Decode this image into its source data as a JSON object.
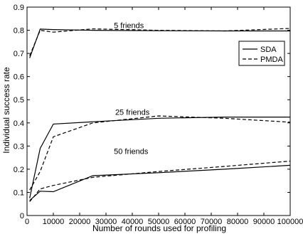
{
  "chart_data": {
    "type": "line",
    "title": "",
    "xlabel": "Number of rounds used for profiling",
    "ylabel": "Individual success rate",
    "xlim": [
      0,
      100000
    ],
    "ylim": [
      0,
      0.9
    ],
    "x_ticks": [
      0,
      10000,
      20000,
      30000,
      40000,
      50000,
      60000,
      70000,
      80000,
      90000,
      100000
    ],
    "y_ticks": [
      0,
      0.1,
      0.2,
      0.3,
      0.4,
      0.5,
      0.6,
      0.7,
      0.8,
      0.9
    ],
    "grid": false,
    "legend": {
      "position": "top-right",
      "entries": [
        {
          "label": "SDA",
          "style": "solid"
        },
        {
          "label": "PMDA",
          "style": "dashed"
        }
      ]
    },
    "annotations": [
      {
        "text": "5 friends",
        "x": 33000,
        "y": 0.81
      },
      {
        "text": "25 friends",
        "x": 33500,
        "y": 0.435
      },
      {
        "text": "50 friends",
        "x": 33000,
        "y": 0.265
      }
    ],
    "series": [
      {
        "group": "5 friends",
        "legend": "SDA",
        "style": "solid",
        "x": [
          1000,
          5000,
          10000,
          25000,
          50000,
          75000,
          100000
        ],
        "y": [
          0.68,
          0.805,
          0.803,
          0.8,
          0.798,
          0.797,
          0.797
        ]
      },
      {
        "group": "5 friends",
        "legend": "PMDA",
        "style": "dashed",
        "x": [
          1000,
          5000,
          10000,
          25000,
          50000,
          75000,
          100000
        ],
        "y": [
          0.69,
          0.8,
          0.792,
          0.806,
          0.8,
          0.797,
          0.808
        ]
      },
      {
        "group": "25 friends",
        "legend": "SDA",
        "style": "solid",
        "x": [
          1000,
          5000,
          10000,
          25000,
          50000,
          75000,
          100000
        ],
        "y": [
          0.075,
          0.29,
          0.395,
          0.405,
          0.42,
          0.425,
          0.425
        ]
      },
      {
        "group": "25 friends",
        "legend": "PMDA",
        "style": "dashed",
        "x": [
          1000,
          5000,
          10000,
          25000,
          50000,
          75000,
          100000
        ],
        "y": [
          0.11,
          0.19,
          0.34,
          0.4,
          0.43,
          0.42,
          0.403
        ]
      },
      {
        "group": "50 friends",
        "legend": "SDA",
        "style": "solid",
        "x": [
          1000,
          5000,
          10000,
          25000,
          50000,
          75000,
          100000
        ],
        "y": [
          0.065,
          0.105,
          0.103,
          0.172,
          0.185,
          0.2,
          0.217
        ]
      },
      {
        "group": "50 friends",
        "legend": "PMDA",
        "style": "dashed",
        "x": [
          1000,
          5000,
          10000,
          25000,
          50000,
          75000,
          100000
        ],
        "y": [
          0.06,
          0.115,
          0.13,
          0.165,
          0.19,
          0.212,
          0.235
        ]
      }
    ]
  }
}
